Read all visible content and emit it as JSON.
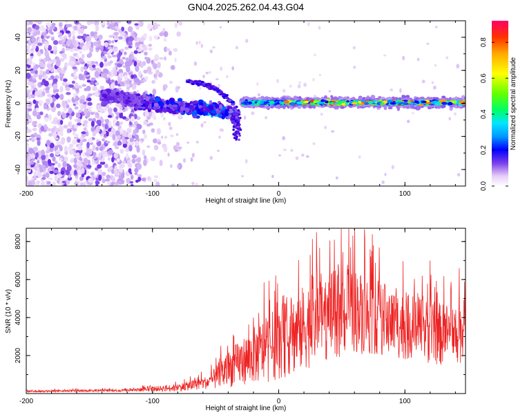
{
  "title": "GN04.2025.262.04.43.G04",
  "colors": {
    "snr_line": "#ee2222",
    "colormap": [
      "#ffffff",
      "#e6cff8",
      "#b58ef0",
      "#7a3ee8",
      "#4a00e0",
      "#0000ff",
      "#0099ff",
      "#00e5ff",
      "#00ff66",
      "#66ff00",
      "#ffff00",
      "#ffaa00",
      "#ff3300",
      "#ff0066"
    ]
  },
  "chart_data": [
    {
      "type": "heatmap",
      "name": "spectrogram",
      "title": "GN04.2025.262.04.43.G04",
      "xlabel": "Height of straight line (km)",
      "ylabel": "Frequency (Hz)",
      "xlim": [
        -200,
        148
      ],
      "ylim": [
        -50,
        50
      ],
      "xticks": [
        -200,
        -100,
        0,
        100
      ],
      "xtick_labels": [
        "-200",
        "-100",
        "0",
        "100"
      ],
      "yticks": [
        -40,
        -20,
        0,
        20,
        40
      ],
      "ytick_labels": [
        "-40",
        "-20",
        "0",
        "20",
        "40"
      ],
      "colorbar": {
        "label": "Normalized spectral amplitude",
        "range": [
          0.0,
          0.92
        ],
        "ticks": [
          0.0,
          0.2,
          0.4,
          0.6,
          0.8
        ],
        "tick_labels": [
          "0.0",
          "0.2",
          "0.4",
          "0.6",
          "0.8"
        ]
      },
      "features": {
        "noise_region_x": [
          -200,
          -105
        ],
        "main_trace": [
          {
            "x": -130,
            "f": 4
          },
          {
            "x": -115,
            "f": 1
          },
          {
            "x": -100,
            "f": 0
          },
          {
            "x": -85,
            "f": -2
          },
          {
            "x": -70,
            "f": -3
          },
          {
            "x": -55,
            "f": -3
          },
          {
            "x": -45,
            "f": -4
          },
          {
            "x": -38,
            "f": -6
          },
          {
            "x": -33,
            "f": -10
          },
          {
            "x": -30,
            "f": 0
          },
          {
            "x": 0,
            "f": 1
          },
          {
            "x": 50,
            "f": 1.5
          },
          {
            "x": 100,
            "f": 1
          },
          {
            "x": 148,
            "f": 0.5
          }
        ],
        "secondary_trace": [
          {
            "x": -72,
            "f": 13
          },
          {
            "x": -60,
            "f": 12
          },
          {
            "x": -50,
            "f": 9
          },
          {
            "x": -42,
            "f": 4
          },
          {
            "x": -36,
            "f": 0
          }
        ],
        "bright_band_x": [
          -25,
          148
        ],
        "bright_band_f": 0.5
      }
    },
    {
      "type": "line",
      "name": "snr",
      "xlabel": "Height of straight line (km)",
      "ylabel": "SNR (10 * v/v)",
      "xlim": [
        -200,
        148
      ],
      "ylim": [
        0,
        8700
      ],
      "xticks": [
        -200,
        -100,
        0,
        100
      ],
      "xtick_labels": [
        "-200",
        "-100",
        "0",
        "100"
      ],
      "yticks": [
        2000,
        4000,
        6000,
        8000
      ],
      "ytick_labels": [
        "2000",
        "4000",
        "6000",
        "8000"
      ],
      "envelope": [
        {
          "x": -200,
          "base": 100,
          "amp": 100
        },
        {
          "x": -120,
          "base": 150,
          "amp": 150
        },
        {
          "x": -80,
          "base": 250,
          "amp": 400
        },
        {
          "x": -55,
          "base": 500,
          "amp": 700
        },
        {
          "x": -45,
          "base": 800,
          "amp": 1700
        },
        {
          "x": -30,
          "base": 1300,
          "amp": 2400
        },
        {
          "x": -10,
          "base": 1800,
          "amp": 3500
        },
        {
          "x": 10,
          "base": 2400,
          "amp": 4200
        },
        {
          "x": 30,
          "base": 3200,
          "amp": 4800
        },
        {
          "x": 60,
          "base": 3700,
          "amp": 4500
        },
        {
          "x": 100,
          "base": 3000,
          "amp": 3500
        },
        {
          "x": 130,
          "base": 2600,
          "amp": 3300
        },
        {
          "x": 148,
          "base": 2800,
          "amp": 3300
        }
      ],
      "peaks": [
        {
          "x": 30,
          "y": 8500
        },
        {
          "x": 68,
          "y": 8650
        },
        {
          "x": 57,
          "y": 7700
        },
        {
          "x": 25,
          "y": 7300
        },
        {
          "x": -1,
          "y": 5800
        },
        {
          "x": 10,
          "y": 4900
        },
        {
          "x": 75,
          "y": 7800
        },
        {
          "x": 120,
          "y": 7000
        },
        {
          "x": 143,
          "y": 6600
        },
        {
          "x": -20,
          "y": 4000
        },
        {
          "x": -36,
          "y": 3100
        },
        {
          "x": 44,
          "y": 8100
        }
      ]
    }
  ]
}
